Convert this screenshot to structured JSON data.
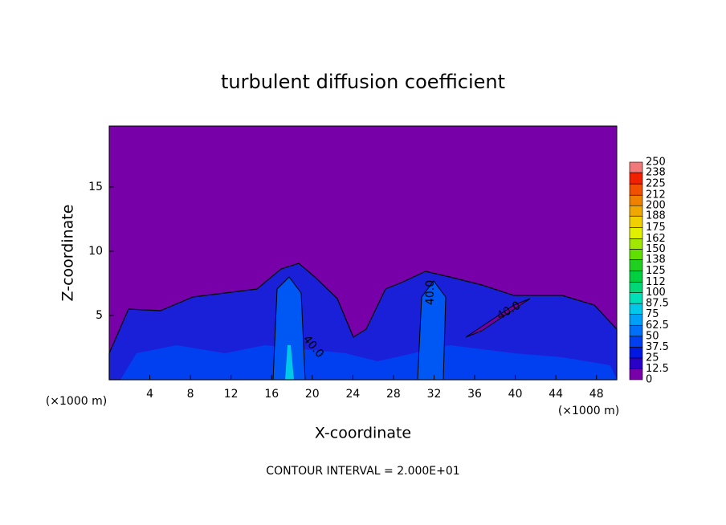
{
  "chart_data": {
    "type": "contour",
    "title": "turbulent diffusion coefficient",
    "x_label": "X-coordinate",
    "y_label": "Z-coordinate",
    "x_unit_label": "(×1000 m)",
    "footer": "CONTOUR INTERVAL = 2.000E+01",
    "contour_labels": [
      "40.0",
      "40.0",
      "40.0"
    ],
    "background_color": "#7800a8",
    "xlim": [
      0,
      50
    ],
    "xticks": [
      4,
      8,
      12,
      16,
      20,
      24,
      28,
      32,
      36,
      40,
      44,
      48
    ],
    "ylim": [
      0,
      19.75
    ],
    "yticks": [
      5,
      10,
      15
    ],
    "colorbar": {
      "levels": [
        0,
        12.5,
        25,
        37.5,
        50,
        62.5,
        75,
        87.5,
        100,
        112,
        125,
        138,
        150,
        162,
        175,
        188,
        200,
        212,
        225,
        238,
        250
      ],
      "colors": [
        "#7800a8",
        "#2a00c8",
        "#0018e0",
        "#0040f0",
        "#0070f8",
        "#00a0f8",
        "#00c8e8",
        "#00e0b8",
        "#00d878",
        "#00d040",
        "#20d020",
        "#60e000",
        "#a0e800",
        "#e0f000",
        "#f0d000",
        "#f0a800",
        "#f08000",
        "#f05000",
        "#f02000",
        "#f07878"
      ]
    }
  }
}
